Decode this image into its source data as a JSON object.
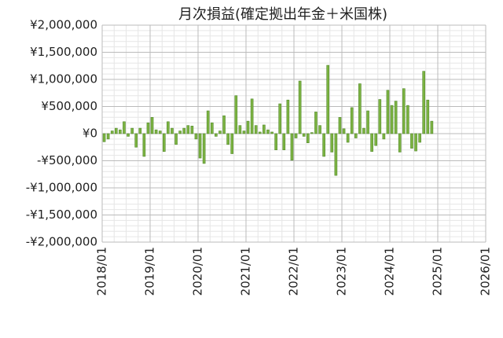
{
  "chart_data": {
    "type": "bar",
    "title": "月次損益(確定拠出年金＋米国株)",
    "x": [
      "2018/01",
      "2018/02",
      "2018/03",
      "2018/04",
      "2018/05",
      "2018/06",
      "2018/07",
      "2018/08",
      "2018/09",
      "2018/10",
      "2018/11",
      "2018/12",
      "2019/01",
      "2019/02",
      "2019/03",
      "2019/04",
      "2019/05",
      "2019/06",
      "2019/07",
      "2019/08",
      "2019/09",
      "2019/10",
      "2019/11",
      "2019/12",
      "2020/01",
      "2020/02",
      "2020/03",
      "2020/04",
      "2020/05",
      "2020/06",
      "2020/07",
      "2020/08",
      "2020/09",
      "2020/10",
      "2020/11",
      "2020/12",
      "2021/01",
      "2021/02",
      "2021/03",
      "2021/04",
      "2021/05",
      "2021/06",
      "2021/07",
      "2021/08",
      "2021/09",
      "2021/10",
      "2021/11",
      "2021/12",
      "2022/01",
      "2022/02",
      "2022/03",
      "2022/04",
      "2022/05",
      "2022/06",
      "2022/07",
      "2022/08",
      "2022/09",
      "2022/10",
      "2022/11",
      "2022/12",
      "2023/01",
      "2023/02",
      "2023/03",
      "2023/04",
      "2023/05",
      "2023/06",
      "2023/07",
      "2023/08",
      "2023/09",
      "2023/10",
      "2023/11",
      "2023/12",
      "2024/01",
      "2024/02",
      "2024/03",
      "2024/04",
      "2024/05",
      "2024/06",
      "2024/07",
      "2024/08",
      "2024/09",
      "2024/10",
      "2024/11"
    ],
    "values": [
      -150000,
      -100000,
      50000,
      100000,
      70000,
      220000,
      -50000,
      100000,
      -250000,
      100000,
      -420000,
      200000,
      300000,
      70000,
      50000,
      -330000,
      220000,
      100000,
      -200000,
      50000,
      100000,
      150000,
      140000,
      -100000,
      -450000,
      -550000,
      420000,
      200000,
      -50000,
      50000,
      330000,
      -200000,
      -370000,
      700000,
      150000,
      50000,
      230000,
      640000,
      150000,
      30000,
      160000,
      70000,
      30000,
      -300000,
      550000,
      -300000,
      620000,
      -490000,
      -80000,
      970000,
      -50000,
      -170000,
      20000,
      400000,
      150000,
      -420000,
      1260000,
      -340000,
      -770000,
      300000,
      90000,
      -160000,
      480000,
      -80000,
      920000,
      100000,
      420000,
      -330000,
      -220000,
      630000,
      -100000,
      800000,
      520000,
      600000,
      -340000,
      830000,
      520000,
      -270000,
      -320000,
      -160000,
      1150000,
      620000,
      230000
    ],
    "color": "#7cb342",
    "xlim": [
      "2018/01",
      "2026/01"
    ],
    "xticks": [
      "2018/01",
      "2019/01",
      "2020/01",
      "2021/01",
      "2022/01",
      "2023/01",
      "2024/01",
      "2025/01",
      "2026/01"
    ],
    "ylim": [
      -2000000,
      2000000
    ],
    "yticks": [
      {
        "value": -2000000,
        "label": "-¥2,000,000"
      },
      {
        "value": -1500000,
        "label": "-¥1,500,000"
      },
      {
        "value": -1000000,
        "label": "-¥1,000,000"
      },
      {
        "value": -500000,
        "label": "-¥500,000"
      },
      {
        "value": 0,
        "label": "¥0"
      },
      {
        "value": 500000,
        "label": "¥500,000"
      },
      {
        "value": 1000000,
        "label": "¥1,000,000"
      },
      {
        "value": 1500000,
        "label": "¥1,500,000"
      },
      {
        "value": 2000000,
        "label": "¥2,000,000"
      }
    ],
    "grid": true
  }
}
